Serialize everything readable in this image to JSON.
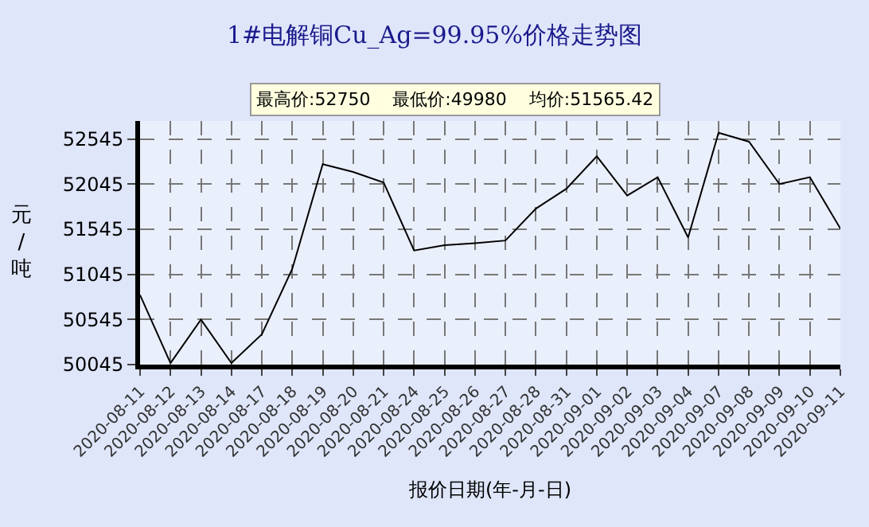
{
  "chart_data": {
    "type": "line",
    "title": "1#电解铜Cu_Ag=99.95%价格走势图",
    "xlabel": "报价日期(年-月-日)",
    "ylabel": "元/吨",
    "categories": [
      "2020-08-11",
      "2020-08-12",
      "2020-08-13",
      "2020-08-14",
      "2020-08-17",
      "2020-08-18",
      "2020-08-19",
      "2020-08-20",
      "2020-08-21",
      "2020-08-24",
      "2020-08-25",
      "2020-08-26",
      "2020-08-27",
      "2020-08-28",
      "2020-08-31",
      "2020-09-01",
      "2020-09-02",
      "2020-09-03",
      "2020-09-04",
      "2020-09-07",
      "2020-09-08",
      "2020-09-09",
      "2020-09-10",
      "2020-09-11"
    ],
    "series": [
      {
        "color": "#000000",
        "values": [
          50816,
          50062,
          50544,
          50062,
          50381,
          51106,
          52267,
          52180,
          52064,
          51310,
          51368,
          51391,
          51420,
          51774,
          51994,
          52354,
          51919,
          52122,
          51454,
          52615,
          52516,
          52046,
          52122,
          51553
        ]
      }
    ],
    "ylim": [
      50045,
      52745
    ],
    "yticks": [
      50045,
      50545,
      51045,
      51545,
      52045,
      52545
    ],
    "grid": true,
    "marker": "none",
    "line_style": "solid",
    "annotations": [
      "最高价:52750",
      "最低价:49980",
      "均价:51565.42"
    ]
  }
}
